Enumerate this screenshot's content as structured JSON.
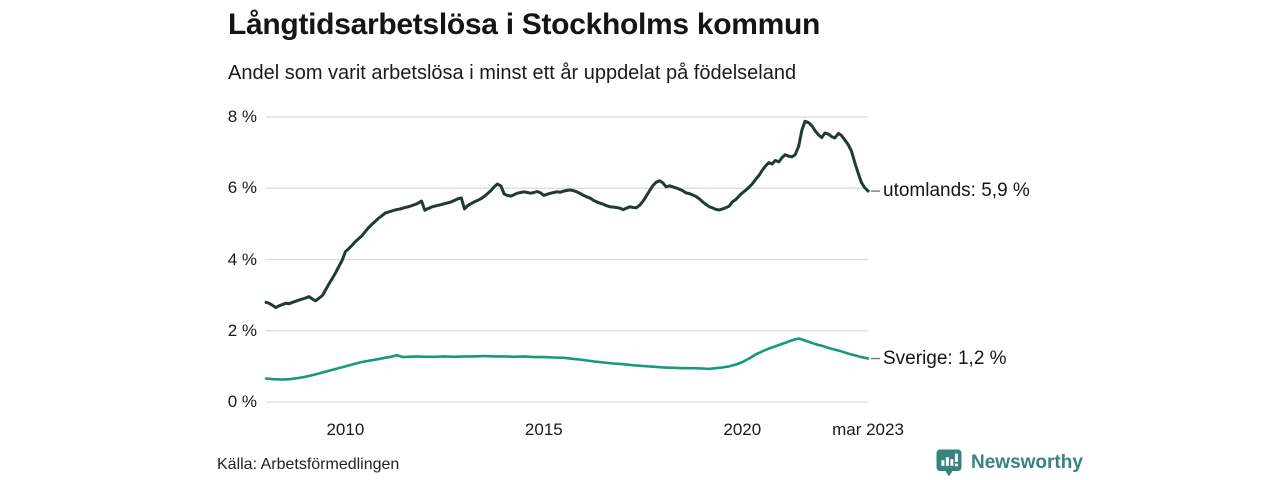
{
  "chart_data": {
    "type": "line",
    "title": "Långtidsarbetslösa i Stockholms kommun",
    "subtitle": "Andel som varit arbetslösa i minst ett år uppdelat på födelseland",
    "source": "Källa: Arbetsförmedlingen",
    "xlim": [
      2008,
      2023.1667
    ],
    "ylim": [
      0,
      8
    ],
    "grid": "horizontal-only",
    "legend_position": "series-end-labels-right",
    "y_axis": {
      "ticks": [
        {
          "value": 0,
          "label": "0 %"
        },
        {
          "value": 2,
          "label": "2 %"
        },
        {
          "value": 4,
          "label": "4 %"
        },
        {
          "value": 6,
          "label": "6 %"
        },
        {
          "value": 8,
          "label": "8 %"
        }
      ]
    },
    "x_axis": {
      "ticks": [
        {
          "x": 2010,
          "label": "2010"
        },
        {
          "x": 2015,
          "label": "2015"
        },
        {
          "x": 2020,
          "label": "2020"
        },
        {
          "x": 2023.1667,
          "label": "mar 2023"
        }
      ]
    },
    "series": [
      {
        "name": "utomlands",
        "end_label": "utomlands: 5,9 %",
        "last_value": 5.9,
        "color": "#1f3b34",
        "stroke_width": 3,
        "points": [
          [
            2008.0,
            2.8
          ],
          [
            2008.08,
            2.77
          ],
          [
            2008.17,
            2.71
          ],
          [
            2008.25,
            2.65
          ],
          [
            2008.33,
            2.7
          ],
          [
            2008.42,
            2.74
          ],
          [
            2008.5,
            2.77
          ],
          [
            2008.58,
            2.76
          ],
          [
            2008.67,
            2.8
          ],
          [
            2008.75,
            2.83
          ],
          [
            2008.83,
            2.86
          ],
          [
            2008.92,
            2.89
          ],
          [
            2009.0,
            2.92
          ],
          [
            2009.08,
            2.96
          ],
          [
            2009.17,
            2.89
          ],
          [
            2009.25,
            2.84
          ],
          [
            2009.33,
            2.91
          ],
          [
            2009.42,
            2.99
          ],
          [
            2009.5,
            3.14
          ],
          [
            2009.58,
            3.3
          ],
          [
            2009.67,
            3.47
          ],
          [
            2009.75,
            3.62
          ],
          [
            2009.83,
            3.79
          ],
          [
            2009.92,
            3.98
          ],
          [
            2010.0,
            4.22
          ],
          [
            2010.08,
            4.3
          ],
          [
            2010.17,
            4.4
          ],
          [
            2010.25,
            4.5
          ],
          [
            2010.33,
            4.58
          ],
          [
            2010.42,
            4.67
          ],
          [
            2010.5,
            4.78
          ],
          [
            2010.58,
            4.89
          ],
          [
            2010.67,
            4.99
          ],
          [
            2010.75,
            5.07
          ],
          [
            2010.83,
            5.15
          ],
          [
            2010.92,
            5.23
          ],
          [
            2011.0,
            5.3
          ],
          [
            2011.08,
            5.33
          ],
          [
            2011.17,
            5.36
          ],
          [
            2011.25,
            5.39
          ],
          [
            2011.33,
            5.41
          ],
          [
            2011.42,
            5.43
          ],
          [
            2011.5,
            5.46
          ],
          [
            2011.58,
            5.48
          ],
          [
            2011.67,
            5.51
          ],
          [
            2011.75,
            5.54
          ],
          [
            2011.83,
            5.58
          ],
          [
            2011.92,
            5.64
          ],
          [
            2012.0,
            5.38
          ],
          [
            2012.08,
            5.43
          ],
          [
            2012.17,
            5.47
          ],
          [
            2012.25,
            5.5
          ],
          [
            2012.33,
            5.52
          ],
          [
            2012.42,
            5.54
          ],
          [
            2012.5,
            5.57
          ],
          [
            2012.58,
            5.59
          ],
          [
            2012.67,
            5.62
          ],
          [
            2012.75,
            5.66
          ],
          [
            2012.83,
            5.7
          ],
          [
            2012.92,
            5.73
          ],
          [
            2013.0,
            5.42
          ],
          [
            2013.08,
            5.51
          ],
          [
            2013.17,
            5.57
          ],
          [
            2013.25,
            5.62
          ],
          [
            2013.33,
            5.66
          ],
          [
            2013.42,
            5.71
          ],
          [
            2013.5,
            5.77
          ],
          [
            2013.58,
            5.85
          ],
          [
            2013.67,
            5.94
          ],
          [
            2013.75,
            6.04
          ],
          [
            2013.83,
            6.12
          ],
          [
            2013.92,
            6.06
          ],
          [
            2014.0,
            5.84
          ],
          [
            2014.08,
            5.8
          ],
          [
            2014.17,
            5.78
          ],
          [
            2014.25,
            5.82
          ],
          [
            2014.33,
            5.86
          ],
          [
            2014.42,
            5.88
          ],
          [
            2014.5,
            5.9
          ],
          [
            2014.58,
            5.88
          ],
          [
            2014.67,
            5.86
          ],
          [
            2014.75,
            5.88
          ],
          [
            2014.83,
            5.91
          ],
          [
            2014.92,
            5.87
          ],
          [
            2015.0,
            5.8
          ],
          [
            2015.08,
            5.83
          ],
          [
            2015.17,
            5.86
          ],
          [
            2015.25,
            5.88
          ],
          [
            2015.33,
            5.9
          ],
          [
            2015.42,
            5.89
          ],
          [
            2015.5,
            5.92
          ],
          [
            2015.58,
            5.94
          ],
          [
            2015.67,
            5.95
          ],
          [
            2015.75,
            5.93
          ],
          [
            2015.83,
            5.9
          ],
          [
            2015.92,
            5.85
          ],
          [
            2016.0,
            5.8
          ],
          [
            2016.08,
            5.76
          ],
          [
            2016.17,
            5.72
          ],
          [
            2016.25,
            5.66
          ],
          [
            2016.33,
            5.62
          ],
          [
            2016.42,
            5.58
          ],
          [
            2016.5,
            5.55
          ],
          [
            2016.58,
            5.51
          ],
          [
            2016.67,
            5.48
          ],
          [
            2016.75,
            5.47
          ],
          [
            2016.83,
            5.46
          ],
          [
            2016.92,
            5.44
          ],
          [
            2017.0,
            5.4
          ],
          [
            2017.08,
            5.44
          ],
          [
            2017.17,
            5.48
          ],
          [
            2017.25,
            5.46
          ],
          [
            2017.33,
            5.45
          ],
          [
            2017.42,
            5.53
          ],
          [
            2017.5,
            5.64
          ],
          [
            2017.58,
            5.78
          ],
          [
            2017.67,
            5.94
          ],
          [
            2017.75,
            6.08
          ],
          [
            2017.83,
            6.17
          ],
          [
            2017.92,
            6.21
          ],
          [
            2018.0,
            6.15
          ],
          [
            2018.08,
            6.04
          ],
          [
            2018.17,
            6.07
          ],
          [
            2018.25,
            6.04
          ],
          [
            2018.33,
            6.01
          ],
          [
            2018.42,
            5.97
          ],
          [
            2018.5,
            5.93
          ],
          [
            2018.58,
            5.87
          ],
          [
            2018.67,
            5.85
          ],
          [
            2018.75,
            5.81
          ],
          [
            2018.83,
            5.77
          ],
          [
            2018.92,
            5.7
          ],
          [
            2019.0,
            5.62
          ],
          [
            2019.08,
            5.55
          ],
          [
            2019.17,
            5.48
          ],
          [
            2019.25,
            5.45
          ],
          [
            2019.33,
            5.41
          ],
          [
            2019.42,
            5.39
          ],
          [
            2019.5,
            5.42
          ],
          [
            2019.58,
            5.45
          ],
          [
            2019.67,
            5.5
          ],
          [
            2019.75,
            5.62
          ],
          [
            2019.83,
            5.68
          ],
          [
            2019.92,
            5.78
          ],
          [
            2020.0,
            5.87
          ],
          [
            2020.08,
            5.94
          ],
          [
            2020.17,
            6.03
          ],
          [
            2020.25,
            6.12
          ],
          [
            2020.33,
            6.24
          ],
          [
            2020.42,
            6.36
          ],
          [
            2020.5,
            6.5
          ],
          [
            2020.58,
            6.62
          ],
          [
            2020.67,
            6.72
          ],
          [
            2020.75,
            6.68
          ],
          [
            2020.83,
            6.78
          ],
          [
            2020.92,
            6.74
          ],
          [
            2021.0,
            6.86
          ],
          [
            2021.08,
            6.94
          ],
          [
            2021.17,
            6.9
          ],
          [
            2021.25,
            6.88
          ],
          [
            2021.33,
            6.94
          ],
          [
            2021.42,
            7.18
          ],
          [
            2021.5,
            7.62
          ],
          [
            2021.58,
            7.88
          ],
          [
            2021.67,
            7.84
          ],
          [
            2021.75,
            7.76
          ],
          [
            2021.83,
            7.62
          ],
          [
            2021.92,
            7.5
          ],
          [
            2022.0,
            7.42
          ],
          [
            2022.08,
            7.55
          ],
          [
            2022.17,
            7.52
          ],
          [
            2022.25,
            7.45
          ],
          [
            2022.33,
            7.41
          ],
          [
            2022.42,
            7.54
          ],
          [
            2022.5,
            7.48
          ],
          [
            2022.58,
            7.36
          ],
          [
            2022.67,
            7.22
          ],
          [
            2022.75,
            7.04
          ],
          [
            2022.83,
            6.74
          ],
          [
            2022.92,
            6.42
          ],
          [
            2023.0,
            6.16
          ],
          [
            2023.08,
            6.02
          ],
          [
            2023.17,
            5.92
          ]
        ]
      },
      {
        "name": "Sverige",
        "end_label": "Sverige: 1,2 %",
        "last_value": 1.2,
        "color": "#18997e",
        "stroke_width": 2.6,
        "points": [
          [
            2008.0,
            0.66
          ],
          [
            2008.2,
            0.64
          ],
          [
            2008.4,
            0.63
          ],
          [
            2008.6,
            0.64
          ],
          [
            2008.8,
            0.67
          ],
          [
            2009.0,
            0.71
          ],
          [
            2009.2,
            0.76
          ],
          [
            2009.4,
            0.82
          ],
          [
            2009.6,
            0.88
          ],
          [
            2009.8,
            0.94
          ],
          [
            2010.0,
            1.0
          ],
          [
            2010.2,
            1.06
          ],
          [
            2010.4,
            1.12
          ],
          [
            2010.6,
            1.16
          ],
          [
            2010.8,
            1.2
          ],
          [
            2011.0,
            1.24
          ],
          [
            2011.15,
            1.27
          ],
          [
            2011.3,
            1.31
          ],
          [
            2011.45,
            1.26
          ],
          [
            2011.6,
            1.27
          ],
          [
            2011.8,
            1.28
          ],
          [
            2012.0,
            1.27
          ],
          [
            2012.25,
            1.27
          ],
          [
            2012.5,
            1.28
          ],
          [
            2012.75,
            1.27
          ],
          [
            2013.0,
            1.28
          ],
          [
            2013.25,
            1.28
          ],
          [
            2013.5,
            1.29
          ],
          [
            2013.75,
            1.28
          ],
          [
            2014.0,
            1.28
          ],
          [
            2014.25,
            1.27
          ],
          [
            2014.5,
            1.28
          ],
          [
            2014.75,
            1.26
          ],
          [
            2015.0,
            1.26
          ],
          [
            2015.25,
            1.25
          ],
          [
            2015.5,
            1.24
          ],
          [
            2015.75,
            1.21
          ],
          [
            2016.0,
            1.18
          ],
          [
            2016.25,
            1.14
          ],
          [
            2016.5,
            1.11
          ],
          [
            2016.75,
            1.08
          ],
          [
            2017.0,
            1.06
          ],
          [
            2017.25,
            1.03
          ],
          [
            2017.5,
            1.01
          ],
          [
            2017.75,
            0.99
          ],
          [
            2018.0,
            0.97
          ],
          [
            2018.25,
            0.96
          ],
          [
            2018.5,
            0.95
          ],
          [
            2018.75,
            0.95
          ],
          [
            2019.0,
            0.94
          ],
          [
            2019.17,
            0.93
          ],
          [
            2019.33,
            0.95
          ],
          [
            2019.5,
            0.97
          ],
          [
            2019.67,
            1.0
          ],
          [
            2019.83,
            1.05
          ],
          [
            2020.0,
            1.12
          ],
          [
            2020.17,
            1.22
          ],
          [
            2020.33,
            1.33
          ],
          [
            2020.5,
            1.42
          ],
          [
            2020.67,
            1.5
          ],
          [
            2020.83,
            1.56
          ],
          [
            2021.0,
            1.63
          ],
          [
            2021.08,
            1.66
          ],
          [
            2021.17,
            1.7
          ],
          [
            2021.25,
            1.73
          ],
          [
            2021.33,
            1.76
          ],
          [
            2021.42,
            1.78
          ],
          [
            2021.5,
            1.76
          ],
          [
            2021.58,
            1.72
          ],
          [
            2021.67,
            1.69
          ],
          [
            2021.75,
            1.66
          ],
          [
            2021.83,
            1.63
          ],
          [
            2021.92,
            1.6
          ],
          [
            2022.0,
            1.58
          ],
          [
            2022.17,
            1.52
          ],
          [
            2022.33,
            1.47
          ],
          [
            2022.5,
            1.42
          ],
          [
            2022.67,
            1.36
          ],
          [
            2022.83,
            1.31
          ],
          [
            2023.0,
            1.26
          ],
          [
            2023.08,
            1.24
          ],
          [
            2023.17,
            1.22
          ]
        ]
      }
    ]
  },
  "footer": {
    "source": "Källa: Arbetsförmedlingen",
    "brand": "Newsworthy"
  },
  "colors": {
    "grid": "#d9d9d9",
    "connector": "#7a7a7a",
    "title_text": "#151515",
    "axis_text": "#1a1a1a",
    "brand_teal": "#37837d",
    "series_utomlands": "#1f3b34",
    "series_sverige": "#18997e",
    "background": "#ffffff"
  }
}
